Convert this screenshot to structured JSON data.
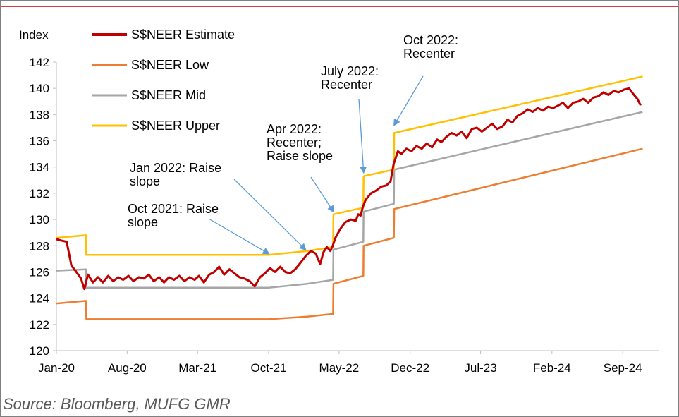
{
  "colors": {
    "topRule": "#c00000",
    "estimate": "#c00000",
    "low": "#ed7d31",
    "mid": "#a6a6a6",
    "upper": "#ffc000",
    "arrow": "#5b9bd5",
    "axis": "#bfbfbf"
  },
  "source": "Source: Bloomberg, MUFG GMR",
  "chart_data": {
    "type": "line",
    "title": "",
    "ylabel": "Index",
    "xlabel": "",
    "ylim": [
      120,
      142
    ],
    "yticks": [
      120,
      122,
      124,
      126,
      128,
      130,
      132,
      134,
      136,
      138,
      140,
      142
    ],
    "xlim": [
      "2020-01-01",
      "2024-12-20"
    ],
    "xticks": [
      {
        "date": "2020-01-01",
        "label": "Jan-20"
      },
      {
        "date": "2020-08-01",
        "label": "Aug-20"
      },
      {
        "date": "2021-03-01",
        "label": "Mar-21"
      },
      {
        "date": "2021-10-01",
        "label": "Oct-21"
      },
      {
        "date": "2022-05-01",
        "label": "May-22"
      },
      {
        "date": "2022-12-01",
        "label": "Dec-22"
      },
      {
        "date": "2023-07-01",
        "label": "Jul-23"
      },
      {
        "date": "2024-02-01",
        "label": "Feb-24"
      },
      {
        "date": "2024-09-01",
        "label": "Sep-24"
      }
    ],
    "grid": false,
    "legend_position": "top-left",
    "series": [
      {
        "name": "S$NEER Estimate",
        "colorKey": "estimate",
        "points": [
          [
            "2020-01-01",
            128.5
          ],
          [
            "2020-01-15",
            128.4
          ],
          [
            "2020-02-01",
            128.3
          ],
          [
            "2020-02-15",
            126.5
          ],
          [
            "2020-03-01",
            126.0
          ],
          [
            "2020-03-15",
            125.5
          ],
          [
            "2020-03-25",
            124.7
          ],
          [
            "2020-04-05",
            125.8
          ],
          [
            "2020-04-20",
            125.2
          ],
          [
            "2020-05-05",
            125.6
          ],
          [
            "2020-05-20",
            125.2
          ],
          [
            "2020-06-05",
            125.7
          ],
          [
            "2020-06-20",
            125.3
          ],
          [
            "2020-07-05",
            125.6
          ],
          [
            "2020-07-20",
            125.4
          ],
          [
            "2020-08-05",
            125.7
          ],
          [
            "2020-08-20",
            125.3
          ],
          [
            "2020-09-05",
            125.6
          ],
          [
            "2020-09-20",
            125.5
          ],
          [
            "2020-10-05",
            125.8
          ],
          [
            "2020-10-20",
            125.3
          ],
          [
            "2020-11-05",
            125.6
          ],
          [
            "2020-11-20",
            125.2
          ],
          [
            "2020-12-05",
            125.6
          ],
          [
            "2020-12-20",
            125.4
          ],
          [
            "2021-01-05",
            125.7
          ],
          [
            "2021-01-20",
            125.3
          ],
          [
            "2021-02-05",
            125.6
          ],
          [
            "2021-02-20",
            125.4
          ],
          [
            "2021-03-05",
            125.7
          ],
          [
            "2021-03-20",
            125.2
          ],
          [
            "2021-04-05",
            125.8
          ],
          [
            "2021-04-20",
            126.0
          ],
          [
            "2021-05-05",
            126.4
          ],
          [
            "2021-05-20",
            125.8
          ],
          [
            "2021-06-05",
            126.2
          ],
          [
            "2021-06-20",
            125.9
          ],
          [
            "2021-07-05",
            125.6
          ],
          [
            "2021-07-20",
            125.5
          ],
          [
            "2021-08-05",
            125.3
          ],
          [
            "2021-08-20",
            124.9
          ],
          [
            "2021-09-05",
            125.6
          ],
          [
            "2021-09-20",
            125.9
          ],
          [
            "2021-10-05",
            126.3
          ],
          [
            "2021-10-20",
            126.0
          ],
          [
            "2021-11-05",
            126.4
          ],
          [
            "2021-11-20",
            126.0
          ],
          [
            "2021-12-05",
            125.9
          ],
          [
            "2021-12-20",
            126.2
          ],
          [
            "2022-01-05",
            126.7
          ],
          [
            "2022-01-20",
            127.2
          ],
          [
            "2022-02-05",
            127.6
          ],
          [
            "2022-02-20",
            127.4
          ],
          [
            "2022-03-05",
            126.6
          ],
          [
            "2022-03-15",
            127.5
          ],
          [
            "2022-03-25",
            127.9
          ],
          [
            "2022-04-05",
            127.6
          ],
          [
            "2022-04-12",
            128.0
          ],
          [
            "2022-04-20",
            128.6
          ],
          [
            "2022-05-05",
            129.3
          ],
          [
            "2022-05-20",
            129.8
          ],
          [
            "2022-06-05",
            130.0
          ],
          [
            "2022-06-20",
            129.9
          ],
          [
            "2022-06-28",
            130.4
          ],
          [
            "2022-07-05",
            130.3
          ],
          [
            "2022-07-12",
            131.0
          ],
          [
            "2022-07-20",
            131.5
          ],
          [
            "2022-08-05",
            132.0
          ],
          [
            "2022-08-20",
            132.2
          ],
          [
            "2022-09-05",
            132.5
          ],
          [
            "2022-09-20",
            132.6
          ],
          [
            "2022-10-03",
            132.9
          ],
          [
            "2022-10-12",
            134.2
          ],
          [
            "2022-10-25",
            135.2
          ],
          [
            "2022-11-05",
            135.0
          ],
          [
            "2022-11-20",
            135.4
          ],
          [
            "2022-12-05",
            135.2
          ],
          [
            "2022-12-20",
            135.6
          ],
          [
            "2023-01-05",
            135.4
          ],
          [
            "2023-01-20",
            135.8
          ],
          [
            "2023-02-05",
            135.5
          ],
          [
            "2023-02-20",
            136.1
          ],
          [
            "2023-03-05",
            135.9
          ],
          [
            "2023-03-20",
            136.3
          ],
          [
            "2023-04-05",
            136.6
          ],
          [
            "2023-04-20",
            136.4
          ],
          [
            "2023-05-05",
            136.7
          ],
          [
            "2023-05-20",
            136.2
          ],
          [
            "2023-06-05",
            136.9
          ],
          [
            "2023-06-20",
            137.0
          ],
          [
            "2023-07-05",
            136.7
          ],
          [
            "2023-07-20",
            137.0
          ],
          [
            "2023-08-05",
            137.3
          ],
          [
            "2023-08-20",
            136.9
          ],
          [
            "2023-09-05",
            137.1
          ],
          [
            "2023-09-20",
            137.6
          ],
          [
            "2023-10-05",
            137.4
          ],
          [
            "2023-10-20",
            137.9
          ],
          [
            "2023-11-05",
            138.1
          ],
          [
            "2023-11-20",
            138.4
          ],
          [
            "2023-12-05",
            138.2
          ],
          [
            "2023-12-20",
            138.5
          ],
          [
            "2024-01-05",
            138.3
          ],
          [
            "2024-01-20",
            138.6
          ],
          [
            "2024-02-05",
            138.5
          ],
          [
            "2024-02-20",
            138.7
          ],
          [
            "2024-03-05",
            138.9
          ],
          [
            "2024-03-20",
            138.5
          ],
          [
            "2024-04-05",
            138.9
          ],
          [
            "2024-04-20",
            139.0
          ],
          [
            "2024-05-05",
            139.2
          ],
          [
            "2024-05-20",
            138.9
          ],
          [
            "2024-06-05",
            139.3
          ],
          [
            "2024-06-20",
            139.4
          ],
          [
            "2024-07-05",
            139.7
          ],
          [
            "2024-07-20",
            139.5
          ],
          [
            "2024-08-05",
            139.8
          ],
          [
            "2024-08-20",
            139.7
          ],
          [
            "2024-09-05",
            139.9
          ],
          [
            "2024-09-20",
            140.0
          ],
          [
            "2024-10-05",
            139.5
          ],
          [
            "2024-10-15",
            139.2
          ],
          [
            "2024-10-25",
            138.7
          ]
        ]
      },
      {
        "name": "S$NEER Low",
        "colorKey": "low",
        "points": [
          [
            "2020-01-01",
            123.6
          ],
          [
            "2020-03-30",
            123.8
          ],
          [
            "2020-03-31",
            122.4
          ],
          [
            "2021-10-01",
            122.4
          ],
          [
            "2022-01-25",
            122.6
          ],
          [
            "2022-04-13",
            122.8
          ],
          [
            "2022-04-14",
            125.1
          ],
          [
            "2022-07-13",
            125.7
          ],
          [
            "2022-07-14",
            128.0
          ],
          [
            "2022-10-13",
            128.6
          ],
          [
            "2022-10-14",
            130.8
          ],
          [
            "2024-10-31",
            135.4
          ]
        ]
      },
      {
        "name": "S$NEER Mid",
        "colorKey": "mid",
        "points": [
          [
            "2020-01-01",
            126.1
          ],
          [
            "2020-03-30",
            126.2
          ],
          [
            "2020-03-31",
            124.8
          ],
          [
            "2021-10-01",
            124.8
          ],
          [
            "2022-01-25",
            125.1
          ],
          [
            "2022-04-13",
            125.4
          ],
          [
            "2022-04-14",
            127.7
          ],
          [
            "2022-07-13",
            128.3
          ],
          [
            "2022-07-14",
            130.6
          ],
          [
            "2022-10-13",
            131.2
          ],
          [
            "2022-10-14",
            133.8
          ],
          [
            "2024-10-31",
            138.2
          ]
        ]
      },
      {
        "name": "S$NEER Upper",
        "colorKey": "upper",
        "points": [
          [
            "2020-01-01",
            128.6
          ],
          [
            "2020-03-30",
            128.8
          ],
          [
            "2020-03-31",
            127.3
          ],
          [
            "2021-10-01",
            127.3
          ],
          [
            "2022-01-25",
            127.6
          ],
          [
            "2022-04-13",
            127.9
          ],
          [
            "2022-04-14",
            130.4
          ],
          [
            "2022-07-13",
            130.9
          ],
          [
            "2022-07-14",
            133.3
          ],
          [
            "2022-10-13",
            133.8
          ],
          [
            "2022-10-14",
            136.6
          ],
          [
            "2024-10-31",
            140.9
          ]
        ]
      }
    ],
    "annotations": [
      {
        "lines": [
          "Oct 2022:",
          "Recenter"
        ],
        "target": [
          "2022-10-14",
          137.2
        ]
      },
      {
        "lines": [
          "July 2022:",
          "Recenter"
        ],
        "target": [
          "2022-07-14",
          133.6
        ]
      },
      {
        "lines": [
          "Apr 2022:",
          "Recenter;",
          "Raise slope"
        ],
        "target": [
          "2022-04-14",
          130.6
        ]
      },
      {
        "lines": [
          "Jan 2022: Raise",
          "slope"
        ],
        "target": [
          "2022-01-20",
          127.7
        ]
      },
      {
        "lines": [
          "Oct 2021: Raise",
          "slope"
        ],
        "target": [
          "2021-10-01",
          127.4
        ]
      }
    ]
  }
}
